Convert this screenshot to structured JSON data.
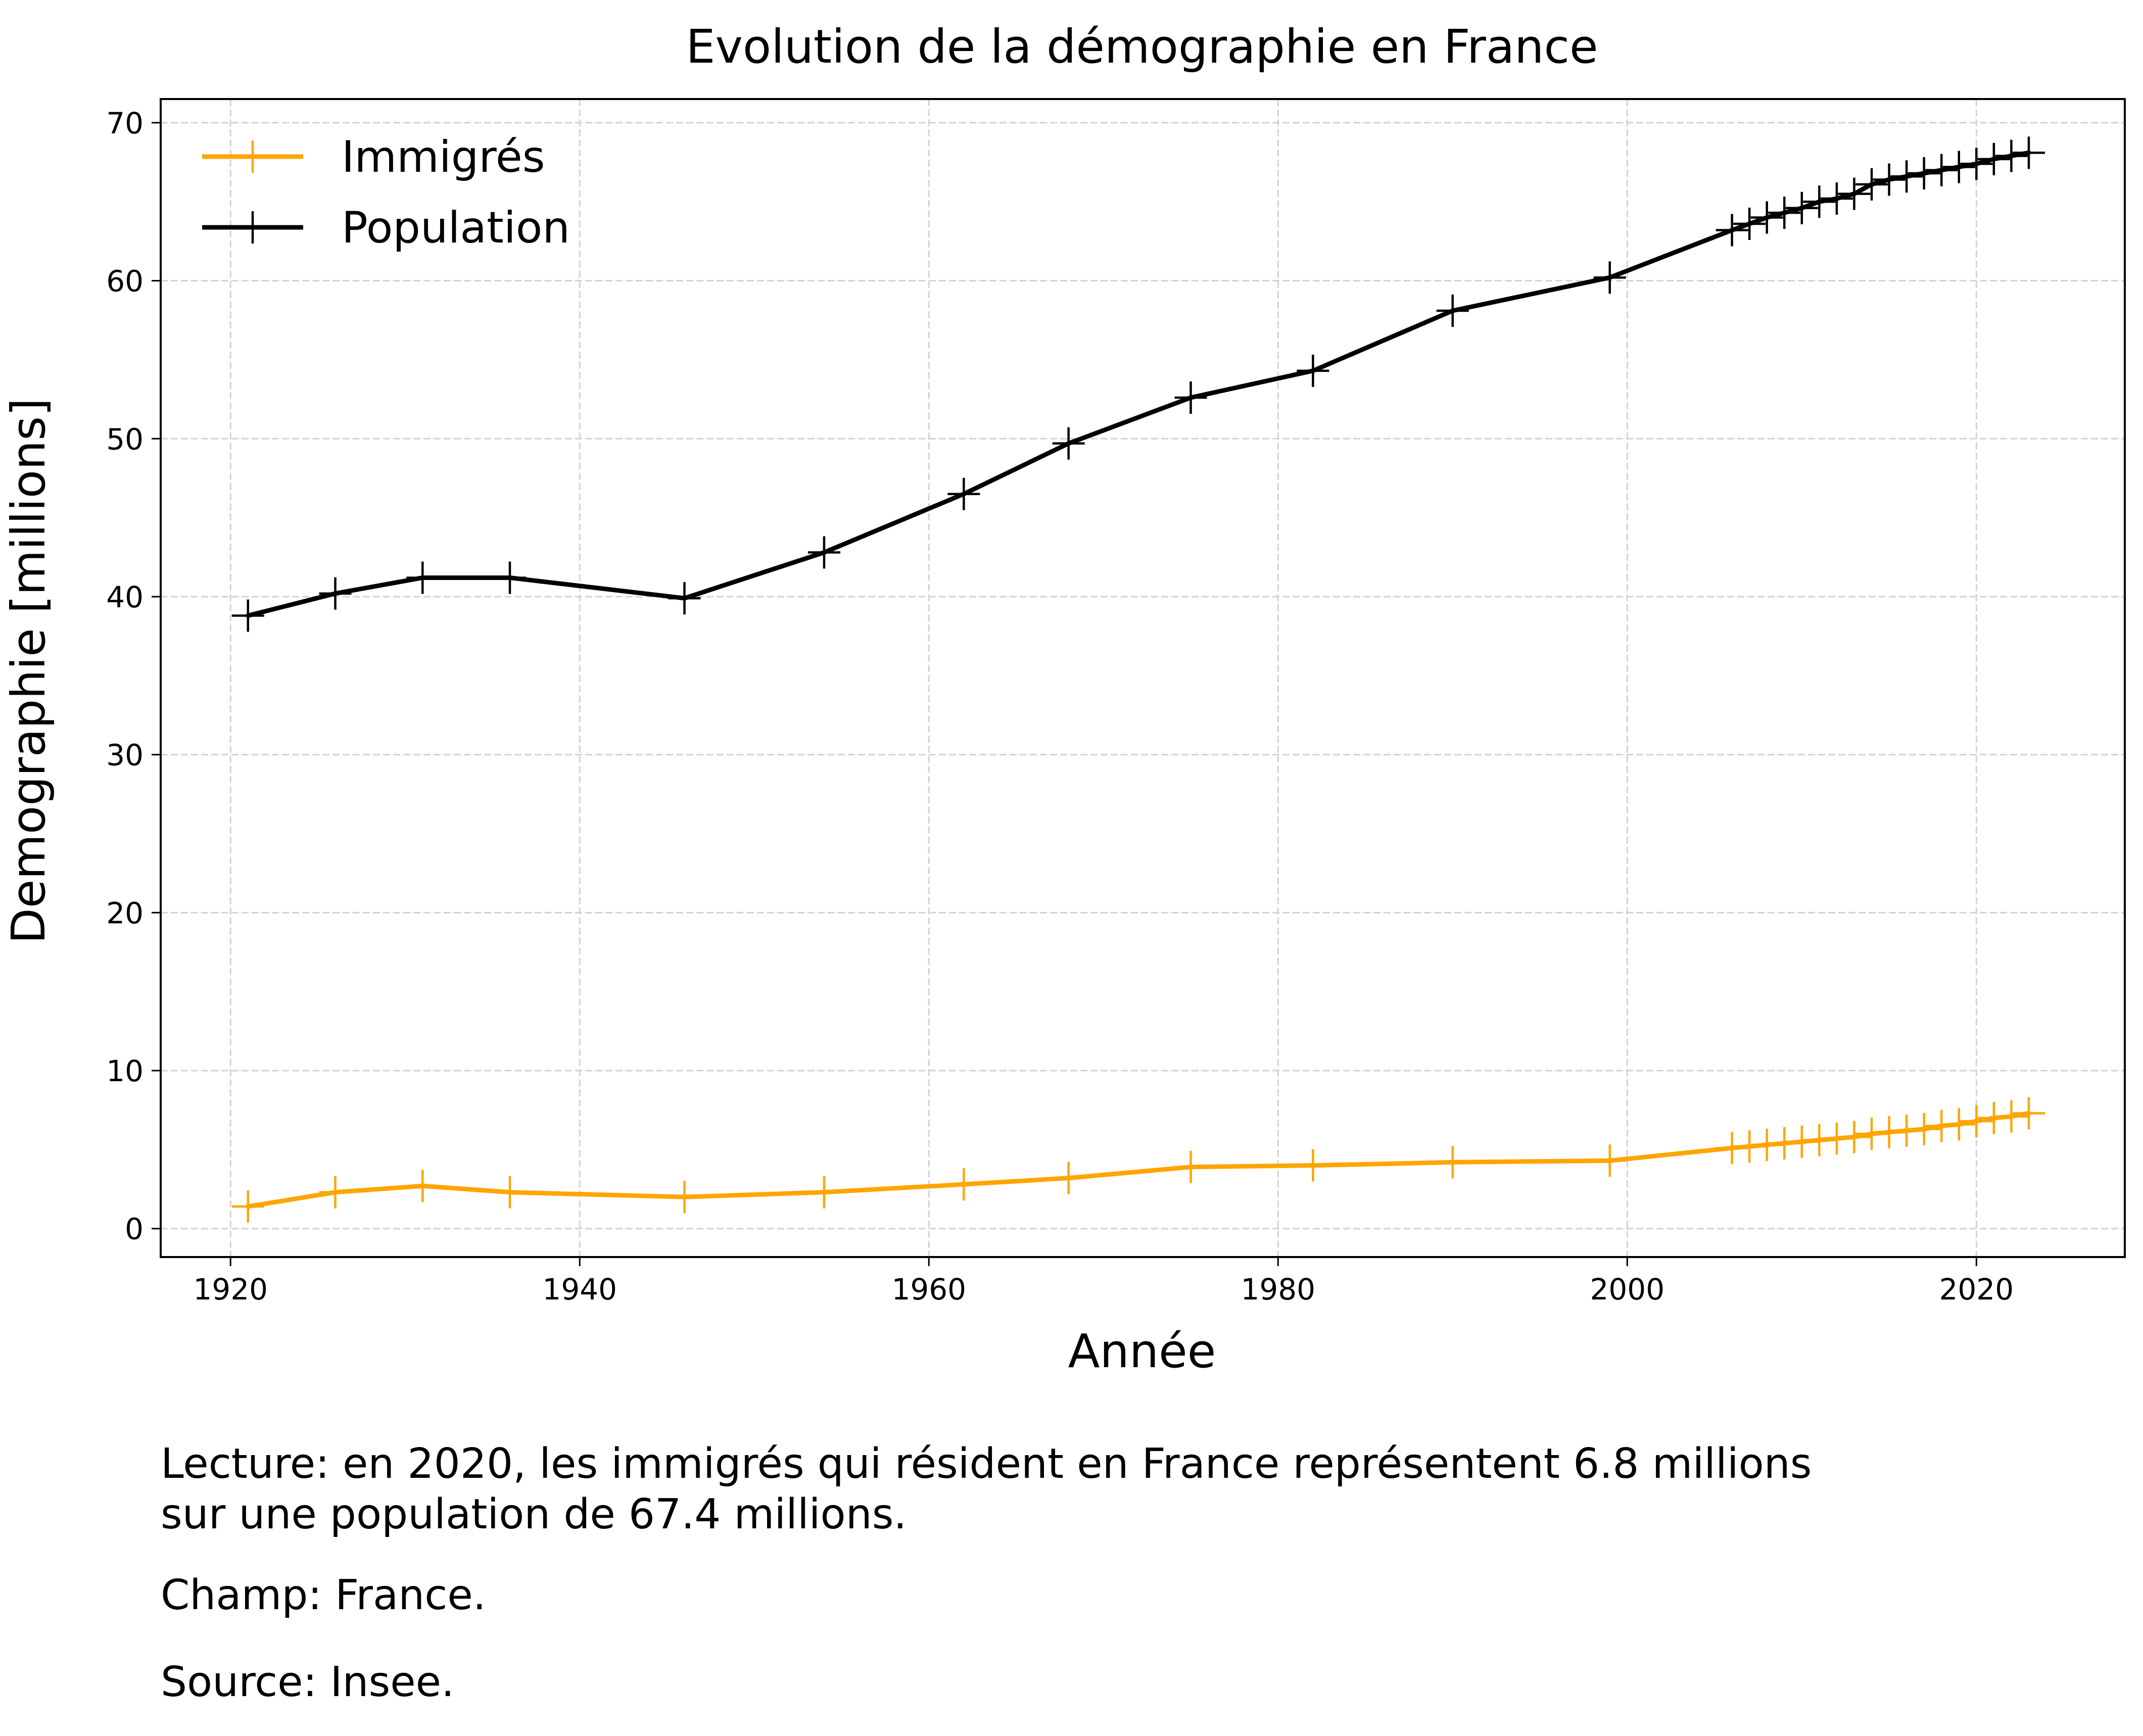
{
  "chart_data": {
    "type": "line",
    "title": "Evolution de la démographie en France",
    "xlabel": "Année",
    "ylabel": "Demographie [millions]",
    "xlim": [
      1916,
      2028.5
    ],
    "ylim": [
      -1.8,
      71.5
    ],
    "xticks": [
      1920,
      1940,
      1960,
      1980,
      2000,
      2020
    ],
    "yticks": [
      0,
      10,
      20,
      30,
      40,
      50,
      60,
      70
    ],
    "grid": true,
    "legend": "top-left",
    "series": [
      {
        "name": "Immigrés",
        "color": "#FFA500",
        "marker": "plus",
        "x": [
          1921,
          1926,
          1931,
          1936,
          1946,
          1954,
          1962,
          1968,
          1975,
          1982,
          1990,
          1999,
          2006,
          2007,
          2008,
          2009,
          2010,
          2011,
          2012,
          2013,
          2014,
          2015,
          2016,
          2017,
          2018,
          2019,
          2020,
          2021,
          2022,
          2023
        ],
        "values": [
          1.4,
          2.3,
          2.7,
          2.3,
          2.0,
          2.3,
          2.8,
          3.2,
          3.9,
          4.0,
          4.2,
          4.3,
          5.1,
          5.2,
          5.3,
          5.4,
          5.5,
          5.6,
          5.7,
          5.8,
          6.0,
          6.1,
          6.2,
          6.3,
          6.5,
          6.6,
          6.8,
          7.0,
          7.1,
          7.3
        ]
      },
      {
        "name": "Population",
        "color": "#000000",
        "marker": "plus",
        "x": [
          1921,
          1926,
          1931,
          1936,
          1946,
          1954,
          1962,
          1968,
          1975,
          1982,
          1990,
          1999,
          2006,
          2007,
          2008,
          2009,
          2010,
          2011,
          2012,
          2013,
          2014,
          2015,
          2016,
          2017,
          2018,
          2019,
          2020,
          2021,
          2022,
          2023
        ],
        "values": [
          38.8,
          40.2,
          41.2,
          41.2,
          39.9,
          42.8,
          46.5,
          49.7,
          52.6,
          54.3,
          58.1,
          60.2,
          63.2,
          63.6,
          64.0,
          64.3,
          64.6,
          65.0,
          65.2,
          65.5,
          66.1,
          66.4,
          66.6,
          66.8,
          67.0,
          67.2,
          67.4,
          67.7,
          67.9,
          68.1
        ]
      }
    ]
  },
  "notes": {
    "lecture": "Lecture: en 2020, les immigrés qui résident en France représentent 6.8 millions\nsur une population de 67.4 millions.",
    "champ": "Champ: France.",
    "source": "Source: Insee."
  }
}
